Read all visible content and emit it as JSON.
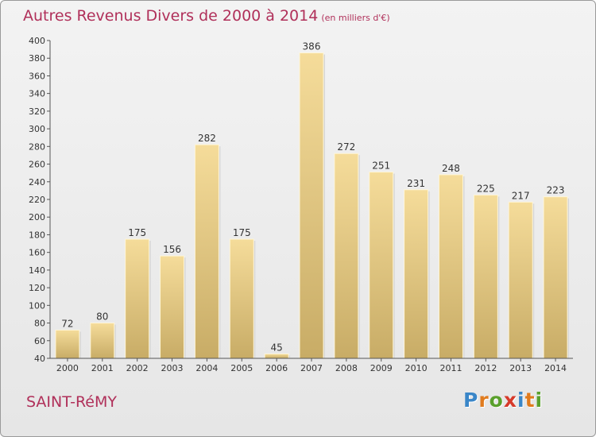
{
  "header": {
    "title": "Autres Revenus Divers de 2000 à 2014",
    "subtitle": "(en milliers d'€)"
  },
  "footer": {
    "commune": "SAINT-RéMY",
    "logo_letters": [
      "P",
      "r",
      "o",
      "x",
      "i",
      "t",
      "i"
    ],
    "logo_colors": [
      "#3a86c8",
      "#e07b1e",
      "#5aa02c",
      "#d63a2a",
      "#3a86c8",
      "#e07b1e",
      "#5aa02c"
    ]
  },
  "colors": {
    "bar_light": "#f5dc9a",
    "bar_dark": "#c8ac66",
    "text": "#b0305a"
  },
  "chart_data": {
    "type": "bar",
    "categories": [
      "2000",
      "2001",
      "2002",
      "2003",
      "2004",
      "2005",
      "2006",
      "2007",
      "2008",
      "2009",
      "2010",
      "2011",
      "2012",
      "2013",
      "2014"
    ],
    "values": [
      72,
      80,
      175,
      156,
      282,
      175,
      45,
      386,
      272,
      251,
      231,
      248,
      225,
      217,
      223
    ],
    "title": "Autres Revenus Divers de 2000 à 2014",
    "ylim": [
      40,
      400
    ],
    "yticks": [
      40,
      60,
      80,
      100,
      120,
      140,
      160,
      180,
      200,
      220,
      240,
      260,
      280,
      300,
      320,
      340,
      360,
      380,
      400
    ],
    "grid": false,
    "data_labels": true
  }
}
